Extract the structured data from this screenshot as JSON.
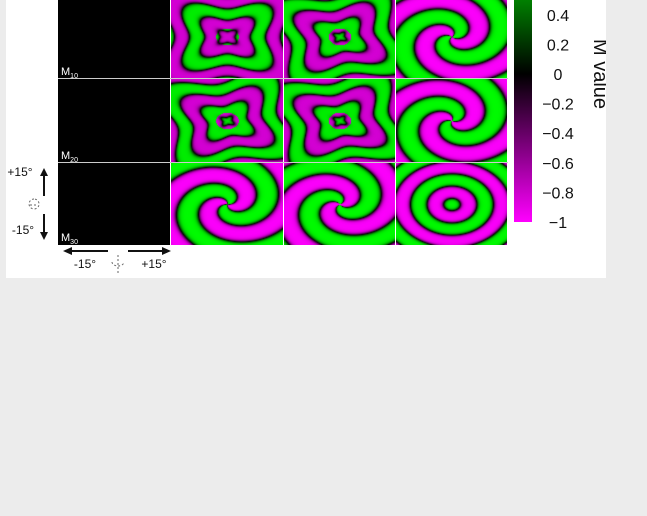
{
  "chart_data": {
    "type": "heatmap",
    "rows": [
      {
        "label_base": "M",
        "label_sub": "10"
      },
      {
        "label_base": "M",
        "label_sub": "20"
      },
      {
        "label_base": "M",
        "label_sub": "30"
      }
    ],
    "columns": 4,
    "first_column_uniform_value": 0,
    "panel_patterns": [
      [
        "uniform",
        "lobed-4",
        "lobed-4",
        "swirl"
      ],
      [
        "uniform",
        "lobed-4",
        "lobed-4",
        "swirl"
      ],
      [
        "uniform",
        "swirl",
        "swirl",
        "concentric"
      ]
    ],
    "colorbar": {
      "title": "M value",
      "ticks": [
        "0.4",
        "0.2",
        "0",
        "−0.2",
        "−0.4",
        "−0.6",
        "−0.8",
        "−1"
      ],
      "tick_values": [
        0.4,
        0.2,
        0,
        -0.2,
        -0.4,
        -0.6,
        -0.8,
        -1
      ],
      "range": [
        -1,
        1
      ],
      "colormap": {
        "low": "#ff00ff",
        "mid": "#000000",
        "high": "#00ff00"
      }
    },
    "vertical_axis": {
      "top_label": "+15°",
      "bottom_label": "-15°"
    },
    "horizontal_axis": {
      "left_label": "-15°",
      "right_label": "+15°"
    }
  },
  "colors": {
    "background": "#ececec",
    "panel_background": "#ffffff",
    "positive": "#00ff00",
    "zero": "#000000",
    "negative": "#ff00ff",
    "separator": "#cccccc"
  }
}
